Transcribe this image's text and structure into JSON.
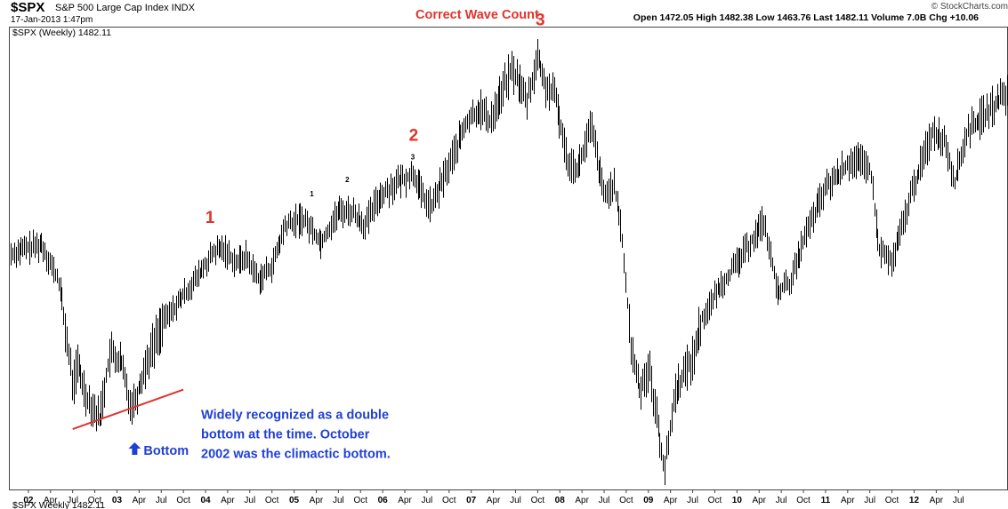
{
  "header": {
    "symbol": "$SPX",
    "name": "S&P 500 Large Cap Index  INDX",
    "date": "17-Jan-2013 1:47pm",
    "stats": "Open 1472.05  High 1482.38  Low 1463.76  Last 1482.11  Volume 7.0B  Chg +10.06",
    "copyright": "© StockCharts.com"
  },
  "legend": "$SPX (Weekly) 1482.11",
  "bottom_label": "$SPX Weekly 1482.11",
  "colors": {
    "annotation_red": "#e0342b",
    "annotation_blue": "#1f3fd6",
    "trendline": "#e0342b",
    "bars": "#000000"
  },
  "chart_data": {
    "type": "ohlc",
    "title": "Correct Wave Count",
    "series_name": "$SPX (Weekly)",
    "ylim": [
      640,
      1620
    ],
    "x_tick_labels": [
      "02",
      "Apr",
      "Jul",
      "Oct",
      "03",
      "Apr",
      "Jul",
      "Oct",
      "04",
      "Apr",
      "Jul",
      "Oct",
      "05",
      "Apr",
      "Jul",
      "Oct",
      "06",
      "Apr",
      "Jul",
      "Oct",
      "07",
      "Apr",
      "Jul",
      "Oct",
      "08",
      "Apr",
      "Jul",
      "Oct",
      "09",
      "Apr",
      "Jul",
      "Oct",
      "10",
      "Apr",
      "Jul",
      "Oct",
      "11",
      "Apr",
      "Jul",
      "Oct",
      "12",
      "Apr",
      "Jul"
    ],
    "x_tick_years": [
      2002.0,
      2002.25,
      2002.5,
      2002.75,
      2003.0,
      2003.25,
      2003.5,
      2003.75,
      2004.0,
      2004.25,
      2004.5,
      2004.75,
      2005.0,
      2005.25,
      2005.5,
      2005.75,
      2006.0,
      2006.25,
      2006.5,
      2006.75,
      2007.0,
      2007.25,
      2007.5,
      2007.75,
      2008.0,
      2008.25,
      2008.5,
      2008.75,
      2009.0,
      2009.25,
      2009.5,
      2009.75,
      2010.0,
      2010.25,
      2010.5,
      2010.75,
      2011.0,
      2011.25,
      2011.5,
      2011.75,
      2012.0,
      2012.25,
      2012.5
    ],
    "x_range": [
      2001.78,
      2013.05
    ],
    "price_path": [
      [
        2001.8,
        1140
      ],
      [
        2001.95,
        1150
      ],
      [
        2002.15,
        1160
      ],
      [
        2002.35,
        1075
      ],
      [
        2002.5,
        860
      ],
      [
        2002.55,
        905
      ],
      [
        2002.65,
        840
      ],
      [
        2002.8,
        790
      ],
      [
        2002.92,
        930
      ],
      [
        2003.05,
        905
      ],
      [
        2003.15,
        820
      ],
      [
        2003.2,
        830
      ],
      [
        2003.35,
        920
      ],
      [
        2003.5,
        990
      ],
      [
        2003.7,
        1040
      ],
      [
        2003.9,
        1090
      ],
      [
        2004.1,
        1145
      ],
      [
        2004.2,
        1150
      ],
      [
        2004.35,
        1120
      ],
      [
        2004.45,
        1135
      ],
      [
        2004.6,
        1085
      ],
      [
        2004.75,
        1115
      ],
      [
        2004.9,
        1200
      ],
      [
        2005.1,
        1215
      ],
      [
        2005.3,
        1165
      ],
      [
        2005.5,
        1230
      ],
      [
        2005.65,
        1230
      ],
      [
        2005.8,
        1200
      ],
      [
        2005.95,
        1260
      ],
      [
        2006.15,
        1290
      ],
      [
        2006.35,
        1310
      ],
      [
        2006.45,
        1260
      ],
      [
        2006.55,
        1240
      ],
      [
        2006.75,
        1330
      ],
      [
        2006.95,
        1420
      ],
      [
        2007.1,
        1450
      ],
      [
        2007.2,
        1420
      ],
      [
        2007.45,
        1530
      ],
      [
        2007.55,
        1500
      ],
      [
        2007.62,
        1460
      ],
      [
        2007.75,
        1560
      ],
      [
        2007.82,
        1500
      ],
      [
        2007.95,
        1470
      ],
      [
        2008.08,
        1340
      ],
      [
        2008.2,
        1320
      ],
      [
        2008.35,
        1410
      ],
      [
        2008.5,
        1260
      ],
      [
        2008.6,
        1290
      ],
      [
        2008.7,
        1180
      ],
      [
        2008.8,
        940
      ],
      [
        2008.9,
        850
      ],
      [
        2009.0,
        900
      ],
      [
        2009.1,
        780
      ],
      [
        2009.18,
        680
      ],
      [
        2009.3,
        850
      ],
      [
        2009.5,
        920
      ],
      [
        2009.6,
        1000
      ],
      [
        2009.8,
        1070
      ],
      [
        2010.0,
        1120
      ],
      [
        2010.3,
        1210
      ],
      [
        2010.45,
        1060
      ],
      [
        2010.6,
        1080
      ],
      [
        2010.75,
        1170
      ],
      [
        2011.0,
        1280
      ],
      [
        2011.3,
        1340
      ],
      [
        2011.5,
        1320
      ],
      [
        2011.6,
        1150
      ],
      [
        2011.75,
        1120
      ],
      [
        2011.95,
        1260
      ],
      [
        2012.2,
        1400
      ],
      [
        2012.35,
        1380
      ],
      [
        2012.45,
        1290
      ],
      [
        2012.6,
        1400
      ],
      [
        2013.05,
        1482
      ]
    ],
    "annotations": [
      {
        "text": "1",
        "style": "red",
        "year": 2004.05,
        "price": 1205
      },
      {
        "text": "2",
        "style": "red",
        "year": 2006.35,
        "price": 1380
      },
      {
        "text": "3",
        "style": "red",
        "year": 2007.78,
        "price": 1625
      },
      {
        "text": "1",
        "style": "small",
        "year": 2005.2,
        "price": 1262
      },
      {
        "text": "2",
        "style": "small",
        "year": 2005.6,
        "price": 1292
      },
      {
        "text": "3",
        "style": "small",
        "year": 2006.34,
        "price": 1340
      }
    ],
    "trendline": {
      "from": [
        2002.5,
        768
      ],
      "to": [
        2003.75,
        852
      ]
    },
    "bottom_marker": "Bottom",
    "note_lines": [
      "Widely recognized as a double",
      "bottom at the time.  October",
      "2002 was the climactic bottom."
    ]
  }
}
